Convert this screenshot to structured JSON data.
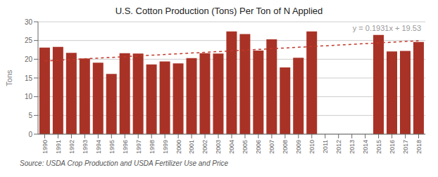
{
  "chart_data": {
    "type": "bar",
    "title": "U.S. Cotton Production (Tons) Per Ton of N Applied",
    "ylabel": "Tons",
    "source": "Source: USDA Crop Production and USDA Fertilizer Use and Price",
    "equation": "y = 0.1931x + 19.53",
    "categories": [
      "1990",
      "1991",
      "1992",
      "1993",
      "1994",
      "1995",
      "1996",
      "1997",
      "1998",
      "1999",
      "2000",
      "2001",
      "2002",
      "2003",
      "2004",
      "2005",
      "2006",
      "2007",
      "2008",
      "2009",
      "2010",
      "2011",
      "2012",
      "2013",
      "2014",
      "2015",
      "2016",
      "2017",
      "2018"
    ],
    "values": [
      23.1,
      23.3,
      21.7,
      20.2,
      19.1,
      16.1,
      21.6,
      21.5,
      18.6,
      19.4,
      18.9,
      20.3,
      21.6,
      21.5,
      27.4,
      26.7,
      22.3,
      25.3,
      17.8,
      20.4,
      27.4,
      null,
      null,
      null,
      null,
      26.5,
      22.1,
      22.2,
      24.6
    ],
    "color": "#A93226",
    "trendline": {
      "x": [
        "1990",
        "2018"
      ],
      "values": [
        19.53,
        24.9368
      ],
      "color": "#C0392B",
      "line_style": "dashed"
    },
    "ylim": [
      0,
      30
    ],
    "yticks": [
      0,
      5,
      10,
      15,
      20,
      25,
      30
    ],
    "grid": true
  }
}
